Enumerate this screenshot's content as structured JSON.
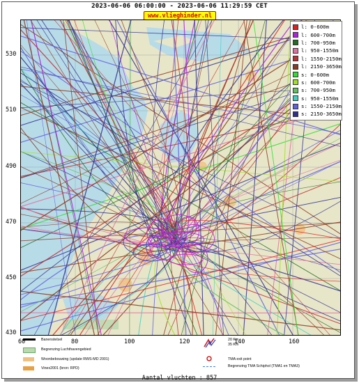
{
  "header": {
    "period": "2023-06-06 06:00:00 - 2023-06-06 11:29:59 CET",
    "site": "www.vlieghinder.nl"
  },
  "map": {
    "y_ticks": [
      "530",
      "510",
      "490",
      "470",
      "450",
      "430"
    ],
    "x_ticks": [
      "60",
      "80",
      "100",
      "120",
      "140",
      "160"
    ]
  },
  "legend": [
    {
      "label": "l: 0-600m",
      "color": "#e02020"
    },
    {
      "label": "l: 600-700m",
      "color": "#b020e0"
    },
    {
      "label": "l: 700-950m",
      "color": "#207020"
    },
    {
      "label": "l: 950-1550m",
      "color": "#e070a0"
    },
    {
      "label": "l: 1550-2150m",
      "color": "#c03030"
    },
    {
      "label": "l: 2150-3650m",
      "color": "#8b3a20"
    },
    {
      "label": "s: 0-600m",
      "color": "#30e030"
    },
    {
      "label": "s: 600-700m",
      "color": "#a0e020"
    },
    {
      "label": "s: 700-950m",
      "color": "#60c060"
    },
    {
      "label": "s: 950-1550m",
      "color": "#40d0c0"
    },
    {
      "label": "s: 1550-2150m",
      "color": "#6060e0"
    },
    {
      "label": "s: 2150-3650m",
      "color": "#303090"
    }
  ],
  "footer": {
    "runway": "Banenstelsel",
    "airport_boundary": "Begrenzing Luchthavengebied",
    "housing": "Woonbebouwing (update RWS-MD 2001)",
    "vinex": "Vinex2001 (bron: RPD)",
    "wind1": "20 Km",
    "wind2": "35 Km",
    "tma_exit": "TMA exit point",
    "tma_boundary": "Begrenzing TMA Schiphol  (TMA1 en TMA3)"
  },
  "count": "Aantal vluchten : 857",
  "colors": {
    "sea": "#b8dbe8",
    "land": "#e8e6c8",
    "site_bg": "#ffff00",
    "site_fg": "#d00000"
  }
}
